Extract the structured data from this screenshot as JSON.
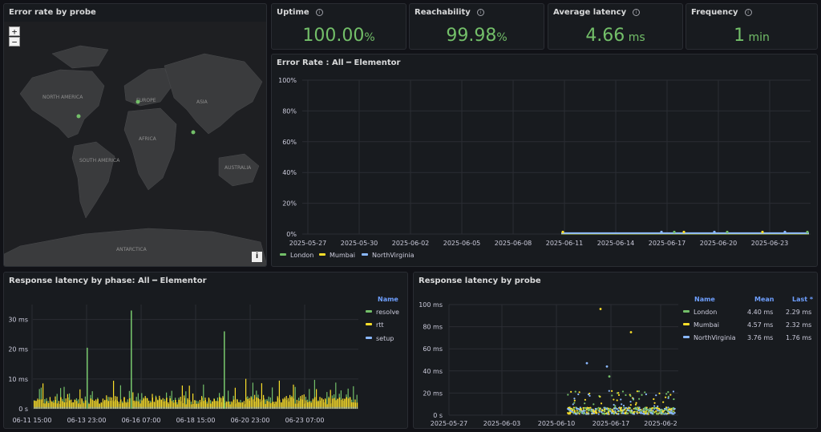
{
  "map_panel": {
    "title": "Error rate by probe",
    "zoom_in": "+",
    "zoom_out": "−",
    "attribution": "i",
    "continents": [
      "NORTH AMERICA",
      "EUROPE",
      "ASIA",
      "AFRICA",
      "SOUTH AMERICA",
      "AUSTRALIA",
      "ANTARCTICA"
    ]
  },
  "stats": [
    {
      "title": "Uptime",
      "value": "100.00",
      "unit": "%"
    },
    {
      "title": "Reachability",
      "value": "99.98",
      "unit": "%"
    },
    {
      "title": "Average latency",
      "value": "4.66",
      "unit": " ms"
    },
    {
      "title": "Frequency",
      "value": "1",
      "unit": " min"
    }
  ],
  "error_rate": {
    "title": "Error Rate : All ━ Elementor",
    "legend": [
      {
        "name": "London",
        "color": "#73bf69"
      },
      {
        "name": "Mumbai",
        "color": "#fade2a"
      },
      {
        "name": "NorthVirginia",
        "color": "#8ab8ff"
      }
    ]
  },
  "phase": {
    "title": "Response latency by phase: All ━ Elementor",
    "legend_header": "Name",
    "legend": [
      {
        "name": "resolve",
        "color": "#73bf69"
      },
      {
        "name": "rtt",
        "color": "#fade2a"
      },
      {
        "name": "setup",
        "color": "#8ab8ff"
      }
    ]
  },
  "probe": {
    "title": "Response latency by probe",
    "headers": {
      "name": "Name",
      "mean": "Mean",
      "last": "Last *"
    },
    "rows": [
      {
        "name": "London",
        "color": "#73bf69",
        "mean": "4.40 ms",
        "last": "2.29 ms"
      },
      {
        "name": "Mumbai",
        "color": "#fade2a",
        "mean": "4.57 ms",
        "last": "2.32 ms"
      },
      {
        "name": "NorthVirginia",
        "color": "#8ab8ff",
        "mean": "3.76 ms",
        "last": "1.76 ms"
      }
    ]
  },
  "chart_data": [
    {
      "type": "line",
      "title": "Error Rate : All ━ Elementor",
      "x": [
        "2025-05-27",
        "2025-05-30",
        "2025-06-02",
        "2025-06-05",
        "2025-06-08",
        "2025-06-11",
        "2025-06-14",
        "2025-06-17",
        "2025-06-20",
        "2025-06-23"
      ],
      "yticks": [
        "0%",
        "20%",
        "40%",
        "60%",
        "80%",
        "100%"
      ],
      "ylim": [
        0,
        100
      ],
      "series": [
        {
          "name": "London",
          "values": [
            null,
            null,
            null,
            null,
            null,
            0,
            0,
            0,
            0,
            0
          ]
        },
        {
          "name": "Mumbai",
          "values": [
            null,
            null,
            null,
            null,
            null,
            0,
            0,
            0,
            0,
            0
          ]
        },
        {
          "name": "NorthVirginia",
          "values": [
            null,
            null,
            null,
            null,
            null,
            0,
            0,
            0,
            0,
            0
          ]
        }
      ],
      "grid": true,
      "legend": "bottom"
    },
    {
      "type": "bar",
      "title": "Response latency by phase: All ━ Elementor",
      "xticks": [
        "06-11 15:00",
        "06-13 23:00",
        "06-16 07:00",
        "06-18 15:00",
        "06-20 23:00",
        "06-23 07:00"
      ],
      "yticks": [
        "0 s",
        "10 ms",
        "20 ms",
        "30 ms"
      ],
      "ylim": [
        0,
        35
      ],
      "spikes": [
        {
          "x": "06-13 23:00",
          "value": 20.5
        },
        {
          "x": "06-16 07:00",
          "value": 33
        },
        {
          "x": "06-19 15:00",
          "value": 26
        }
      ],
      "series": [
        "resolve",
        "rtt",
        "setup"
      ],
      "legend": "right"
    },
    {
      "type": "scatter",
      "title": "Response latency by probe",
      "xticks": [
        "2025-05-27",
        "2025-06-03",
        "2025-06-10",
        "2025-06-17",
        "2025-06-2"
      ],
      "yticks": [
        "0 s",
        "20 ms",
        "40 ms",
        "60 ms",
        "80 ms",
        "100 ms"
      ],
      "ylim": [
        0,
        100
      ],
      "outliers": [
        {
          "series": "Mumbai",
          "x": "2025-06-14",
          "y": 96
        },
        {
          "series": "Mumbai",
          "x": "2025-06-18",
          "y": 75
        },
        {
          "series": "NorthVirginia",
          "x": "2025-06-12",
          "y": 47
        },
        {
          "series": "NorthVirginia",
          "x": "2025-06-15",
          "y": 44
        },
        {
          "series": "London",
          "x": "2025-06-16",
          "y": 35
        }
      ],
      "series": [
        "London",
        "Mumbai",
        "NorthVirginia"
      ],
      "legend": "right"
    }
  ]
}
